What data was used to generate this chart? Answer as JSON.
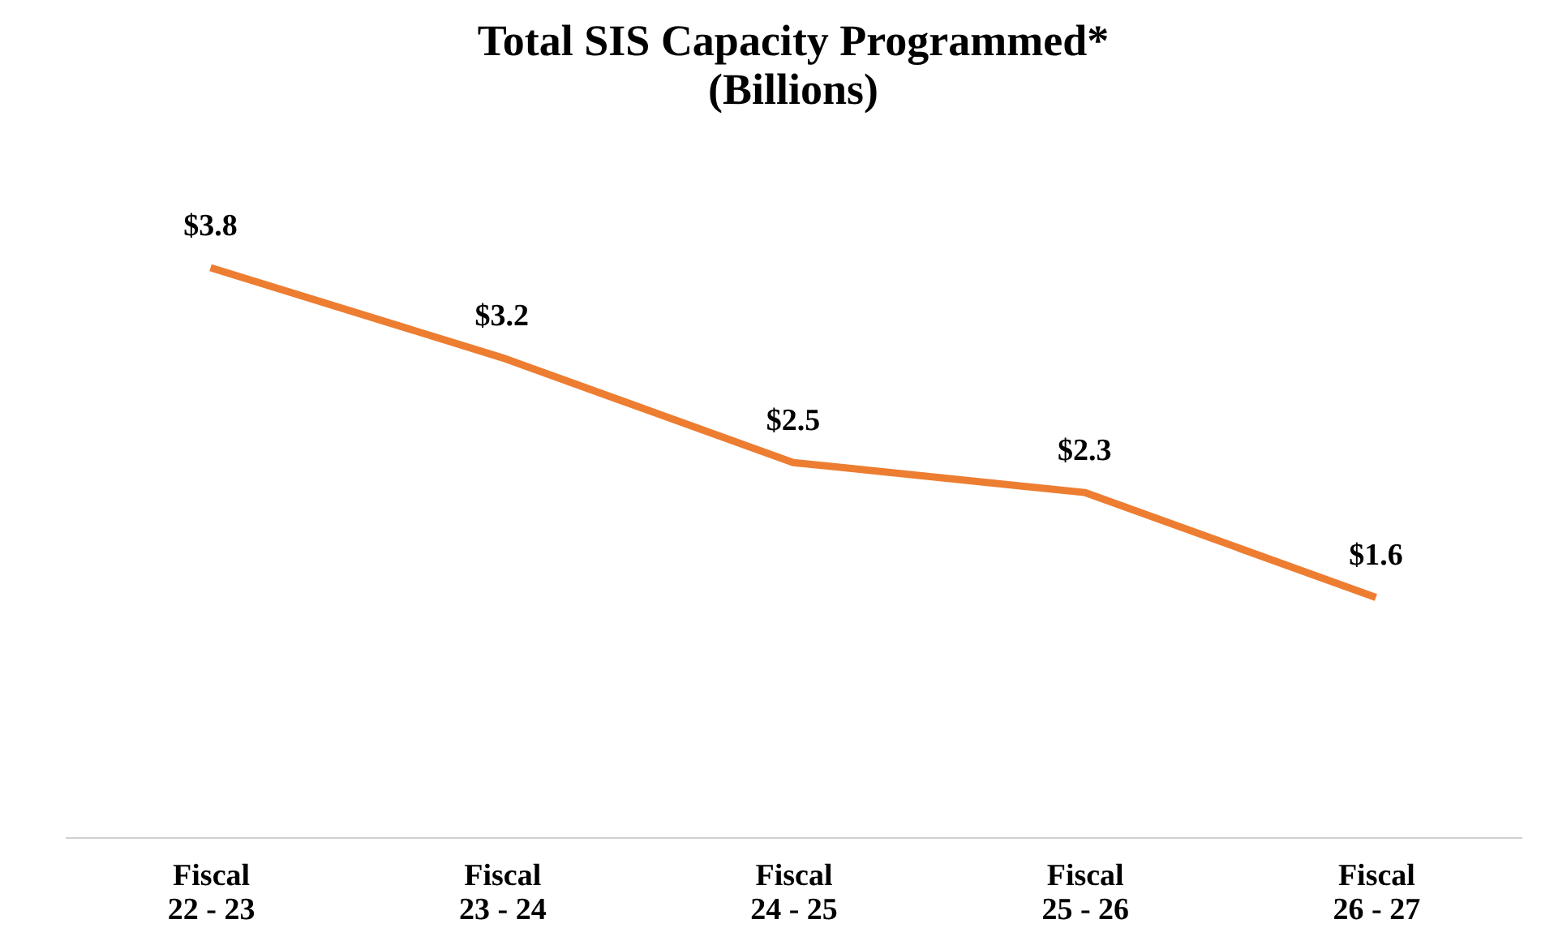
{
  "chart_data": {
    "type": "line",
    "title": "Total SIS Capacity Programmed*",
    "subtitle": "(Billions)",
    "categories": [
      "Fiscal\n22 - 23",
      "Fiscal\n23 - 24",
      "Fiscal\n24 - 25",
      "Fiscal\n25 - 26",
      "Fiscal\n26 - 27"
    ],
    "series": [
      {
        "color": "#ed7d31",
        "values": [
          3.8,
          3.2,
          2.5,
          2.3,
          1.6
        ],
        "value_labels": [
          "$3.8",
          "$3.2",
          "$2.5",
          "$2.3",
          "$1.6"
        ]
      }
    ],
    "grid": false,
    "marker": "none",
    "line_style": "solid",
    "tick_labels": "x"
  }
}
